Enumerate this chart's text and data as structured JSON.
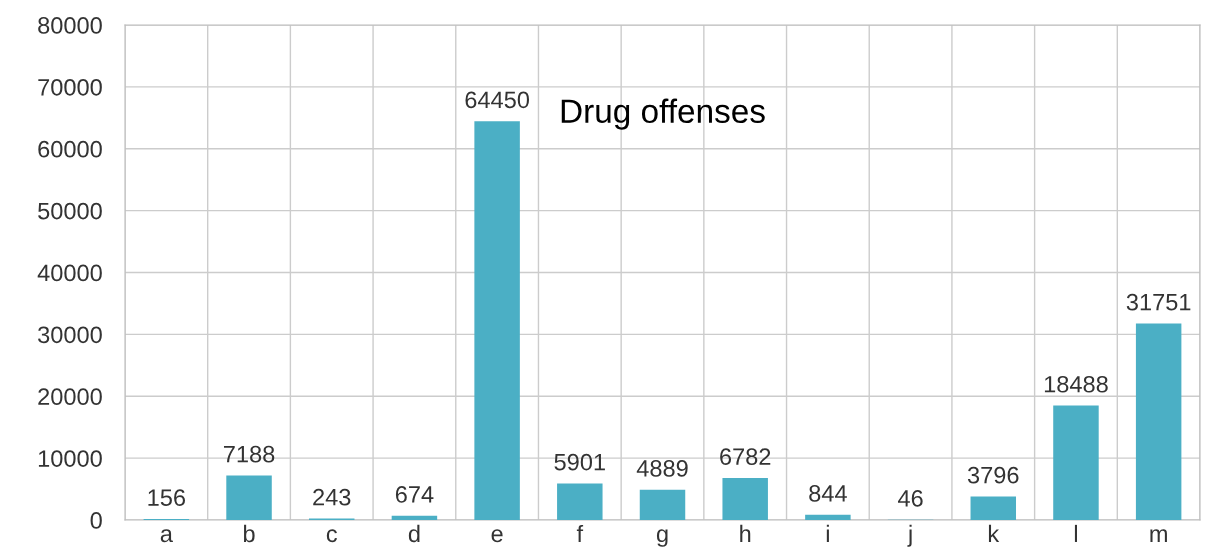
{
  "chart_data": {
    "type": "bar",
    "title": "Drug offenses",
    "categories": [
      "a",
      "b",
      "c",
      "d",
      "e",
      "f",
      "g",
      "h",
      "i",
      "j",
      "k",
      "l",
      "m"
    ],
    "values": [
      156,
      7188,
      243,
      674,
      64450,
      5901,
      4889,
      6782,
      844,
      46,
      3796,
      18488,
      31751
    ],
    "color": "#4bafc5",
    "ylim": [
      0,
      80000
    ],
    "yticks": [
      0,
      10000,
      20000,
      30000,
      40000,
      50000,
      60000,
      70000,
      80000
    ],
    "grid": true,
    "data_labels": true
  }
}
